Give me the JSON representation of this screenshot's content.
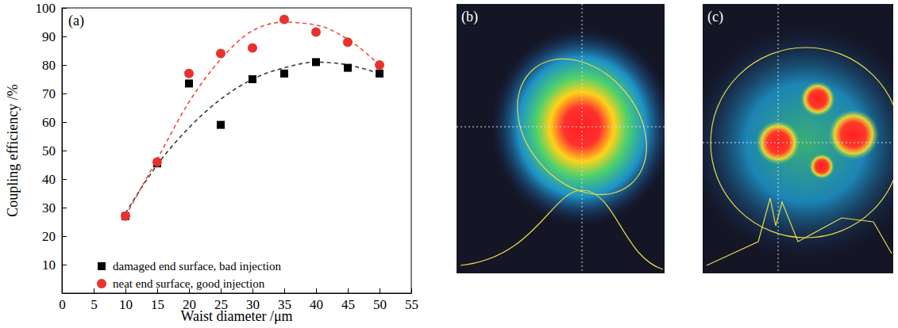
{
  "chart_data": {
    "type": "scatter",
    "panel": "(a)",
    "x_label": "Waist diameter /μm",
    "y_label": "Coupling efficiency /%",
    "x": [
      10,
      15,
      20,
      25,
      30,
      35,
      40,
      45,
      50
    ],
    "series": [
      {
        "name": "damaged end surface, bad injection",
        "type": "scatter",
        "marker": "square",
        "color": "#000000",
        "values": [
          27,
          45.5,
          73.5,
          59,
          75,
          77,
          81,
          79,
          77
        ]
      },
      {
        "name": "neat end surface, good injection",
        "type": "scatter",
        "marker": "circle",
        "color": "#e8322b",
        "values": [
          27,
          46,
          77,
          84,
          86,
          96,
          91.5,
          88,
          80
        ]
      },
      {
        "type": "line",
        "line_style": "dashed",
        "color": "#3a3a3a",
        "values": [
          28,
          45,
          58,
          68,
          75,
          79,
          81,
          80,
          77
        ]
      },
      {
        "type": "line",
        "line_style": "dashed",
        "color": "#f0493e",
        "values": [
          27,
          47,
          67,
          82,
          92,
          95,
          94,
          89,
          80
        ]
      }
    ],
    "xlim": [
      0,
      55
    ],
    "xticks": [
      0,
      5,
      10,
      15,
      20,
      25,
      30,
      35,
      40,
      45,
      50,
      55
    ],
    "ylim": [
      0,
      100
    ],
    "yticks": [
      10,
      20,
      30,
      40,
      50,
      60,
      70,
      80,
      90,
      100
    ],
    "grid": false,
    "legend": "lower center"
  },
  "panels": [
    {
      "label": "(b)"
    },
    {
      "label": "(c)"
    }
  ]
}
